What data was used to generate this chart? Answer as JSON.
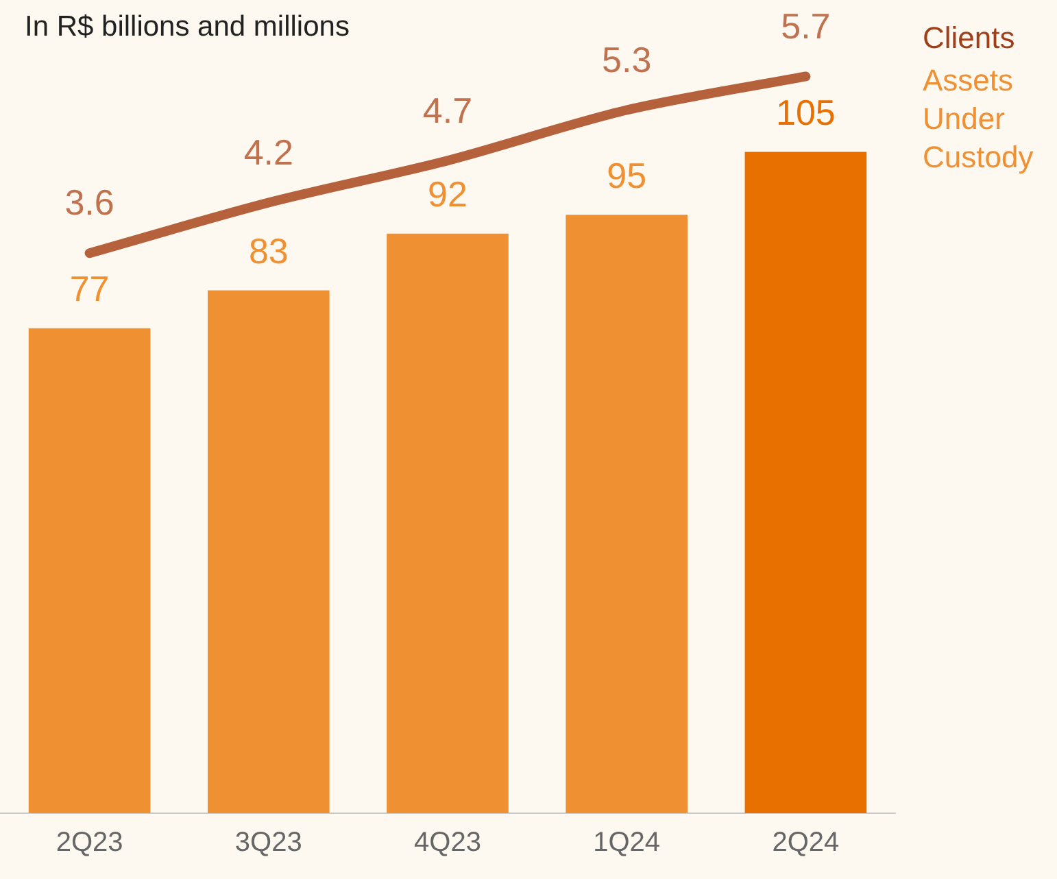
{
  "chart_data": {
    "type": "bar",
    "title": "In R$ billions and millions",
    "categories": [
      "2Q23",
      "3Q23",
      "4Q23",
      "1Q24",
      "2Q24"
    ],
    "series": [
      {
        "name": "Assets Under Custody",
        "colors": [
          "#ef9033",
          "#ef9033",
          "#ef9033",
          "#ef9033",
          "#e87000"
        ],
        "values": [
          77,
          83,
          92,
          95,
          105
        ]
      },
      {
        "type": "line",
        "name": "Clients",
        "color": "#b5613c",
        "axis": "y2",
        "values": [
          3.6,
          4.2,
          4.7,
          5.3,
          5.7
        ]
      }
    ],
    "data_labels": true,
    "legend": false,
    "grid": false,
    "tick_labels": "x",
    "marker": "none"
  }
}
